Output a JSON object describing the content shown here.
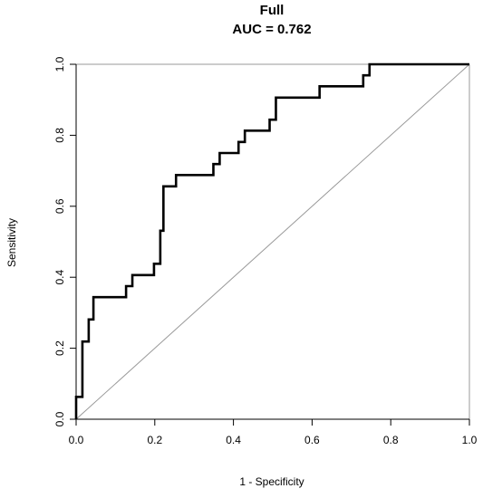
{
  "chart_data": {
    "type": "line",
    "title": "Full",
    "subtitle": "AUC = 0.762",
    "xlabel": "1 - Specificity",
    "ylabel": "Sensitivity",
    "xlim": [
      0,
      1
    ],
    "ylim": [
      0,
      1
    ],
    "x_ticks": [
      "0.0",
      "0.2",
      "0.4",
      "0.6",
      "0.8",
      "1.0"
    ],
    "y_ticks": [
      "0.0",
      "0.2",
      "0.4",
      "0.6",
      "0.8",
      "1.0"
    ],
    "grid": false,
    "legend": "none",
    "colors": {
      "curve": "#000000",
      "diagonal": "#999999",
      "frame": "#000000"
    },
    "series": [
      {
        "points": [
          [
            0.0,
            0.0
          ],
          [
            0.0,
            0.063
          ],
          [
            0.016,
            0.063
          ],
          [
            0.016,
            0.219
          ],
          [
            0.032,
            0.219
          ],
          [
            0.032,
            0.281
          ],
          [
            0.044,
            0.281
          ],
          [
            0.044,
            0.344
          ],
          [
            0.127,
            0.344
          ],
          [
            0.127,
            0.375
          ],
          [
            0.143,
            0.375
          ],
          [
            0.143,
            0.406
          ],
          [
            0.198,
            0.406
          ],
          [
            0.198,
            0.438
          ],
          [
            0.214,
            0.438
          ],
          [
            0.214,
            0.531
          ],
          [
            0.222,
            0.531
          ],
          [
            0.222,
            0.656
          ],
          [
            0.254,
            0.656
          ],
          [
            0.254,
            0.688
          ],
          [
            0.349,
            0.688
          ],
          [
            0.349,
            0.719
          ],
          [
            0.365,
            0.719
          ],
          [
            0.365,
            0.75
          ],
          [
            0.413,
            0.75
          ],
          [
            0.413,
            0.781
          ],
          [
            0.429,
            0.781
          ],
          [
            0.429,
            0.813
          ],
          [
            0.492,
            0.813
          ],
          [
            0.492,
            0.844
          ],
          [
            0.508,
            0.844
          ],
          [
            0.508,
            0.906
          ],
          [
            0.619,
            0.906
          ],
          [
            0.619,
            0.938
          ],
          [
            0.73,
            0.938
          ],
          [
            0.73,
            0.969
          ],
          [
            0.746,
            0.969
          ],
          [
            0.746,
            1.0
          ],
          [
            1.0,
            1.0
          ]
        ]
      }
    ],
    "reference_line": [
      [
        0,
        0
      ],
      [
        1,
        1
      ]
    ]
  }
}
